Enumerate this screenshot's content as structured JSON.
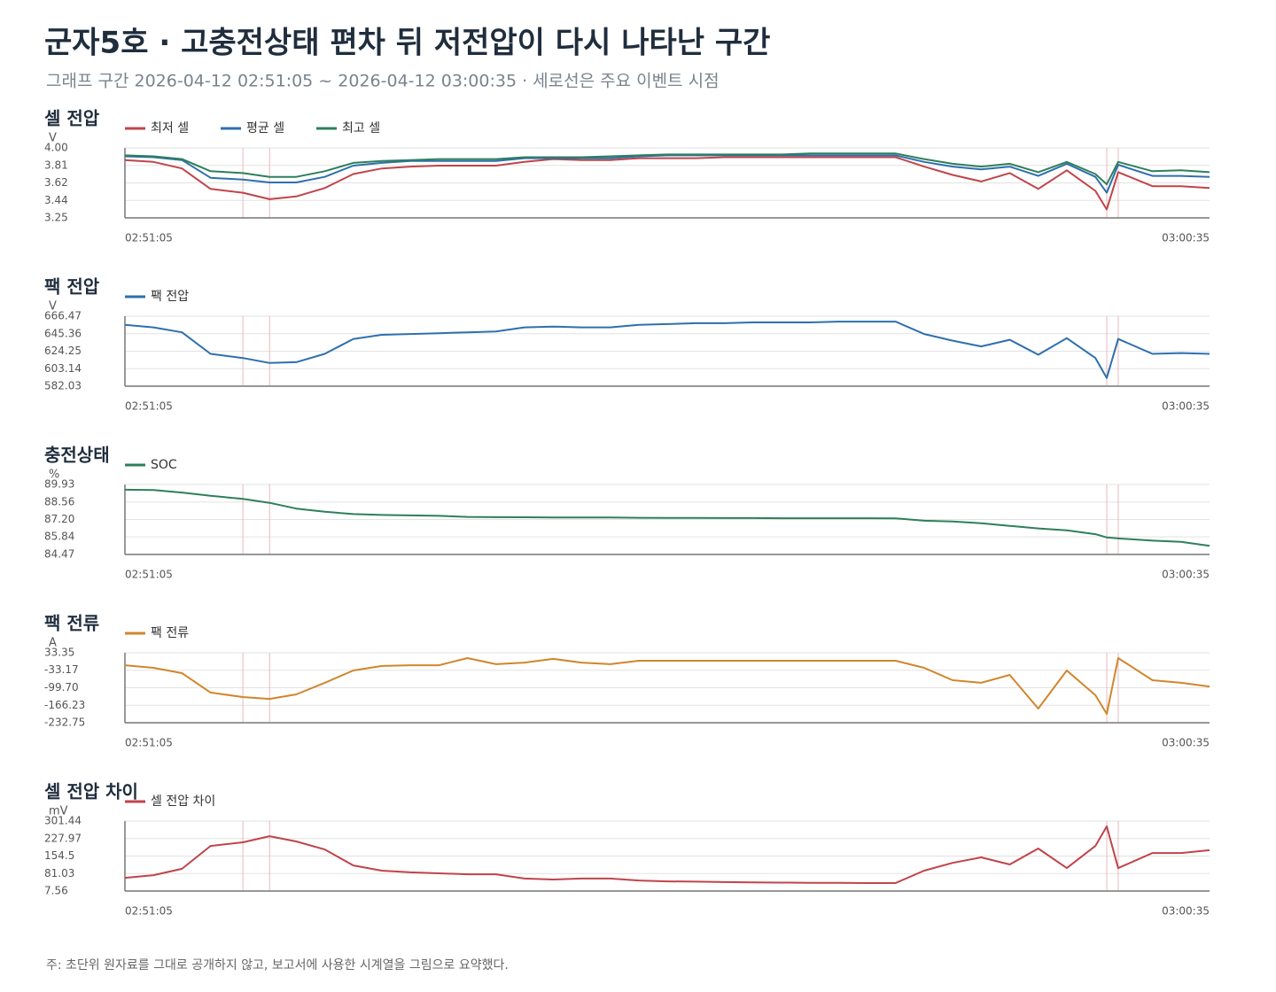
{
  "title": "군자5호 · 고충전상태 편차 뒤 저전압이 다시 나타난 구간",
  "subtitle": "그래프 구간 2026-04-12 02:51:05 ~ 2026-04-12 03:00:35 · 세로선은 주요 이벤트 시점",
  "note": "주: 초단위 원자료를 그대로 공개하지 않고, 보고서에 사용한 시계열을 그림으로 요약했다.",
  "chart_data": [
    {
      "type": "line",
      "title": "셀 전압",
      "y_label": "V",
      "x": [
        "02:51:05",
        "02:51:20",
        "02:51:35",
        "02:51:50",
        "02:52:07",
        "02:52:21",
        "02:52:35",
        "02:52:50",
        "02:53:05",
        "02:53:20",
        "02:53:35",
        "02:53:50",
        "02:54:05",
        "02:54:20",
        "02:54:35",
        "02:54:50",
        "02:55:05",
        "02:55:20",
        "02:55:35",
        "02:55:50",
        "02:56:05",
        "02:56:20",
        "02:56:35",
        "02:56:50",
        "02:57:05",
        "02:57:20",
        "02:57:35",
        "02:57:50",
        "02:58:05",
        "02:58:20",
        "02:58:35",
        "02:58:50",
        "02:59:05",
        "02:59:20",
        "02:59:35",
        "02:59:41",
        "02:59:47",
        "03:00:05",
        "03:00:20",
        "03:00:35"
      ],
      "xlim": [
        "02:51:05",
        "03:00:35"
      ],
      "xticks": [
        "02:51:05",
        "03:00:35"
      ],
      "events": [
        "02:52:07",
        "02:52:21",
        "02:59:41",
        "02:59:47"
      ],
      "ylim": [
        3.25,
        4.0
      ],
      "yticks": [
        {
          "value": 3.25,
          "label": "3.25"
        },
        {
          "value": 3.4375,
          "label": "3.44"
        },
        {
          "value": 3.625,
          "label": "3.62"
        },
        {
          "value": 3.8125,
          "label": "3.81"
        },
        {
          "value": 4.0,
          "label": "4.00"
        }
      ],
      "grid": true,
      "series": [
        {
          "name": "최저 셀",
          "color": "#c0444a",
          "values": [
            3.87,
            3.85,
            3.78,
            3.56,
            3.52,
            3.45,
            3.48,
            3.57,
            3.72,
            3.78,
            3.8,
            3.81,
            3.81,
            3.81,
            3.85,
            3.88,
            3.87,
            3.87,
            3.89,
            3.89,
            3.89,
            3.9,
            3.9,
            3.9,
            3.9,
            3.9,
            3.9,
            3.9,
            3.8,
            3.71,
            3.64,
            3.73,
            3.56,
            3.76,
            3.54,
            3.34,
            3.74,
            3.59,
            3.59,
            3.57
          ]
        },
        {
          "name": "평균 셀",
          "color": "#2e6fad",
          "values": [
            3.91,
            3.9,
            3.87,
            3.68,
            3.66,
            3.63,
            3.63,
            3.69,
            3.81,
            3.84,
            3.86,
            3.86,
            3.86,
            3.86,
            3.89,
            3.89,
            3.89,
            3.89,
            3.91,
            3.92,
            3.92,
            3.92,
            3.92,
            3.92,
            3.92,
            3.92,
            3.92,
            3.92,
            3.85,
            3.8,
            3.77,
            3.8,
            3.7,
            3.83,
            3.69,
            3.52,
            3.82,
            3.7,
            3.7,
            3.69
          ]
        },
        {
          "name": "최고 셀",
          "color": "#2e7f5b",
          "values": [
            3.92,
            3.91,
            3.88,
            3.75,
            3.73,
            3.69,
            3.69,
            3.75,
            3.84,
            3.86,
            3.87,
            3.88,
            3.88,
            3.88,
            3.9,
            3.9,
            3.9,
            3.91,
            3.92,
            3.93,
            3.93,
            3.93,
            3.93,
            3.93,
            3.94,
            3.94,
            3.94,
            3.94,
            3.88,
            3.83,
            3.8,
            3.83,
            3.74,
            3.85,
            3.72,
            3.61,
            3.85,
            3.75,
            3.76,
            3.74
          ]
        }
      ]
    },
    {
      "type": "line",
      "title": "팩 전압",
      "y_label": "V",
      "x": [
        "02:51:05",
        "02:51:20",
        "02:51:35",
        "02:51:50",
        "02:52:07",
        "02:52:21",
        "02:52:35",
        "02:52:50",
        "02:53:05",
        "02:53:20",
        "02:53:35",
        "02:53:50",
        "02:54:05",
        "02:54:20",
        "02:54:35",
        "02:54:50",
        "02:55:05",
        "02:55:20",
        "02:55:35",
        "02:55:50",
        "02:56:05",
        "02:56:20",
        "02:56:35",
        "02:56:50",
        "02:57:05",
        "02:57:20",
        "02:57:35",
        "02:57:50",
        "02:58:05",
        "02:58:20",
        "02:58:35",
        "02:58:50",
        "02:59:05",
        "02:59:20",
        "02:59:35",
        "02:59:41",
        "02:59:47",
        "03:00:05",
        "03:00:20",
        "03:00:35"
      ],
      "xlim": [
        "02:51:05",
        "03:00:35"
      ],
      "xticks": [
        "02:51:05",
        "03:00:35"
      ],
      "events": [
        "02:52:07",
        "02:52:21",
        "02:59:41",
        "02:59:47"
      ],
      "ylim": [
        582.03,
        666.47
      ],
      "yticks": [
        582.03,
        603.14,
        624.25,
        645.36,
        666.47
      ],
      "grid": true,
      "series": [
        {
          "name": "팩 전압",
          "color": "#2e6fad",
          "values": [
            656,
            653,
            647,
            621,
            616,
            610,
            611,
            621,
            639,
            644,
            645,
            646,
            647,
            648,
            653,
            654,
            653,
            653,
            656,
            657,
            658,
            658,
            659,
            659,
            659,
            660,
            660,
            660,
            645,
            637,
            630,
            638,
            620,
            640,
            616,
            592,
            639,
            621,
            622,
            621
          ]
        }
      ]
    },
    {
      "type": "line",
      "title": "충전상태",
      "y_label": "%",
      "x": [
        "02:51:05",
        "02:51:20",
        "02:51:35",
        "02:51:50",
        "02:52:07",
        "02:52:21",
        "02:52:35",
        "02:52:50",
        "02:53:05",
        "02:53:20",
        "02:53:35",
        "02:53:50",
        "02:54:05",
        "02:54:20",
        "02:54:35",
        "02:54:50",
        "02:55:05",
        "02:55:20",
        "02:55:35",
        "02:55:50",
        "02:56:05",
        "02:56:20",
        "02:56:35",
        "02:56:50",
        "02:57:05",
        "02:57:20",
        "02:57:35",
        "02:57:50",
        "02:58:05",
        "02:58:20",
        "02:58:35",
        "02:58:50",
        "02:59:05",
        "02:59:20",
        "02:59:35",
        "02:59:41",
        "02:59:47",
        "03:00:05",
        "03:00:20",
        "03:00:35"
      ],
      "xlim": [
        "02:51:05",
        "03:00:35"
      ],
      "xticks": [
        "02:51:05",
        "03:00:35"
      ],
      "events": [
        "02:52:07",
        "02:52:21",
        "02:59:41",
        "02:59:47"
      ],
      "ylim": [
        84.47,
        89.93
      ],
      "yticks": [
        84.47,
        85.84,
        {
          "value": 87.2,
          "label": "87.20"
        },
        88.56,
        89.93
      ],
      "grid": true,
      "series": [
        {
          "name": "SOC",
          "color": "#2e7f5b",
          "values": [
            89.52,
            89.5,
            89.3,
            89.05,
            88.8,
            88.5,
            88.05,
            87.8,
            87.62,
            87.55,
            87.52,
            87.48,
            87.4,
            87.38,
            87.37,
            87.36,
            87.36,
            87.35,
            87.33,
            87.32,
            87.32,
            87.31,
            87.31,
            87.3,
            87.3,
            87.3,
            87.3,
            87.29,
            87.1,
            87.05,
            86.9,
            86.7,
            86.5,
            86.35,
            86.05,
            85.8,
            85.72,
            85.55,
            85.45,
            85.15
          ]
        }
      ]
    },
    {
      "type": "line",
      "title": "팩 전류",
      "y_label": "A",
      "x": [
        "02:51:05",
        "02:51:20",
        "02:51:35",
        "02:51:50",
        "02:52:07",
        "02:52:21",
        "02:52:35",
        "02:52:50",
        "02:53:05",
        "02:53:20",
        "02:53:35",
        "02:53:50",
        "02:54:05",
        "02:54:20",
        "02:54:35",
        "02:54:50",
        "02:55:05",
        "02:55:20",
        "02:55:35",
        "02:55:50",
        "02:56:05",
        "02:56:20",
        "02:56:35",
        "02:56:50",
        "02:57:05",
        "02:57:20",
        "02:57:35",
        "02:57:50",
        "02:58:05",
        "02:58:20",
        "02:58:35",
        "02:58:50",
        "02:59:05",
        "02:59:20",
        "02:59:35",
        "02:59:41",
        "02:59:47",
        "03:00:05",
        "03:00:20",
        "03:00:35"
      ],
      "xlim": [
        "02:51:05",
        "03:00:35"
      ],
      "xticks": [
        "02:51:05",
        "03:00:35"
      ],
      "events": [
        "02:52:07",
        "02:52:21",
        "02:59:41",
        "02:59:47"
      ],
      "ylim": [
        -232.75,
        33.35
      ],
      "yticks": [
        -232.75,
        -166.23,
        {
          "value": -99.7,
          "label": "-99.70"
        },
        -33.17,
        33.35
      ],
      "grid": true,
      "series": [
        {
          "name": "팩 전류",
          "color": "#d0862c",
          "values": [
            -14,
            -24,
            -44,
            -118,
            -135,
            -142,
            -125,
            -81,
            -34,
            -17,
            -14,
            -14,
            13,
            -10,
            -4,
            10,
            -4,
            -10,
            3,
            3,
            3,
            3,
            3,
            3,
            3,
            3,
            3,
            3,
            -24,
            -71,
            -81,
            -51,
            -179,
            -34,
            -128,
            -199,
            13,
            -71,
            -81,
            -95
          ]
        }
      ]
    },
    {
      "type": "line",
      "title": "셀 전압 차이",
      "y_label": "mV",
      "x": [
        "02:51:05",
        "02:51:20",
        "02:51:35",
        "02:51:50",
        "02:52:07",
        "02:52:21",
        "02:52:35",
        "02:52:50",
        "02:53:05",
        "02:53:20",
        "02:53:35",
        "02:53:50",
        "02:54:05",
        "02:54:20",
        "02:54:35",
        "02:54:50",
        "02:55:05",
        "02:55:20",
        "02:55:35",
        "02:55:50",
        "02:56:05",
        "02:56:20",
        "02:56:35",
        "02:56:50",
        "02:57:05",
        "02:57:20",
        "02:57:35",
        "02:57:50",
        "02:58:05",
        "02:58:20",
        "02:58:35",
        "02:58:50",
        "02:59:05",
        "02:59:20",
        "02:59:35",
        "02:59:41",
        "02:59:47",
        "03:00:05",
        "03:00:20",
        "03:00:35"
      ],
      "xlim": [
        "02:51:05",
        "03:00:35"
      ],
      "xticks": [
        "02:51:05",
        "03:00:35"
      ],
      "events": [
        "02:52:07",
        "02:52:21",
        "02:59:41",
        "02:59:47"
      ],
      "ylim": [
        7.56,
        301.44
      ],
      "yticks": [
        7.56,
        81.03,
        154.5,
        227.97,
        301.44
      ],
      "grid": true,
      "series": [
        {
          "name": "셀 전압 차이",
          "color": "#c0444a",
          "values": [
            63,
            74,
            101,
            197,
            212,
            238,
            216,
            182,
            115,
            93,
            86,
            82,
            78,
            78,
            60,
            56,
            60,
            60,
            52,
            48,
            47,
            45,
            44,
            43,
            42,
            42,
            41,
            41,
            93,
            126,
            149,
            119,
            186,
            104,
            197,
            279,
            104,
            167,
            167,
            179
          ]
        }
      ]
    }
  ]
}
